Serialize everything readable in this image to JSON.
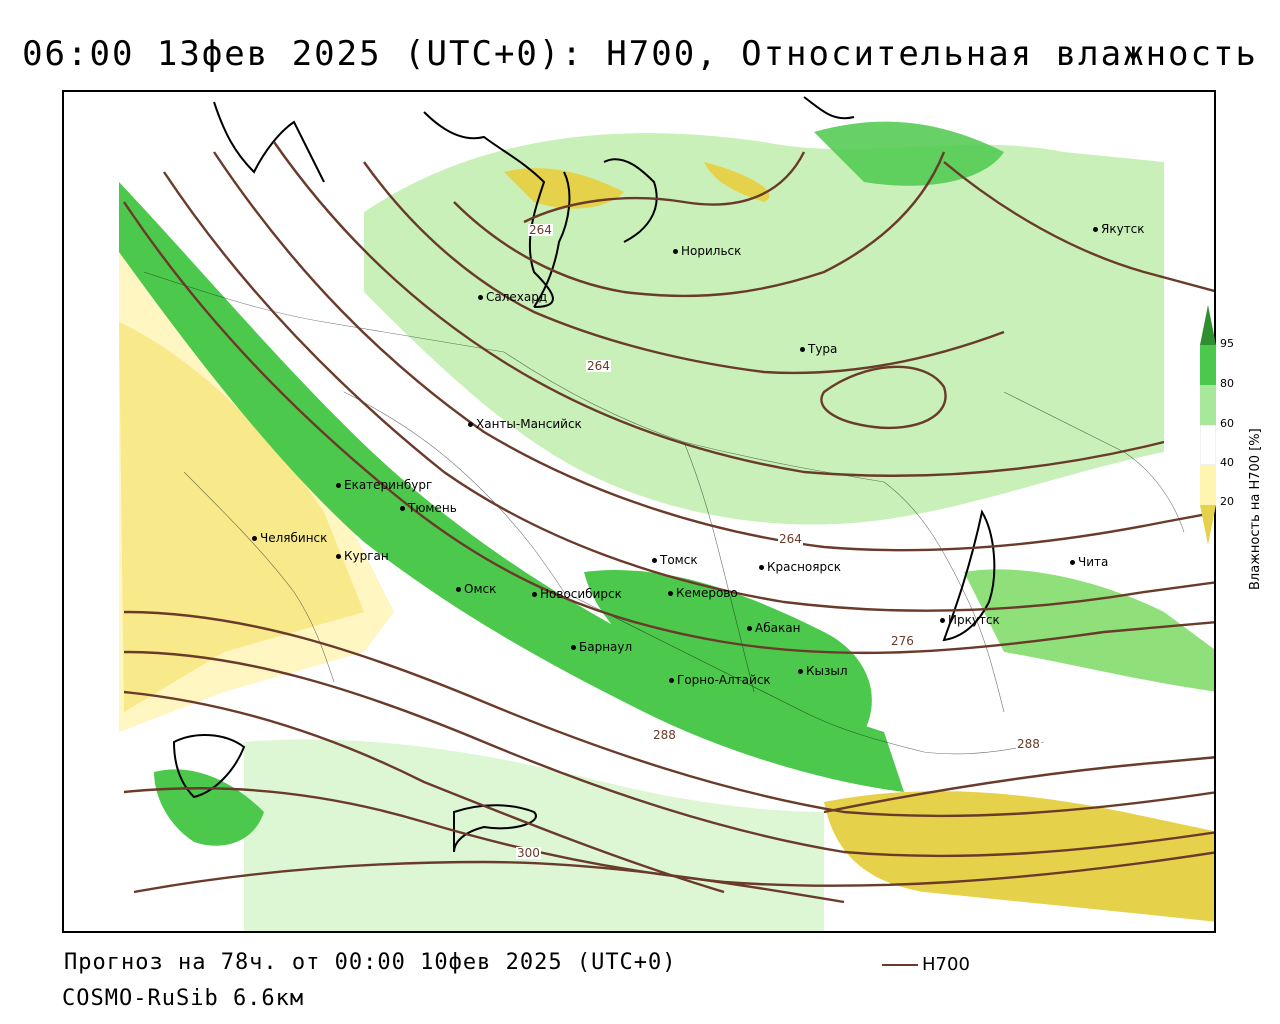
{
  "title": "06:00 13фев 2025 (UTC+0): H700, Относительная влажность",
  "footer": {
    "forecast": "Прогноз на 78ч. от 00:00 10фев 2025 (UTC+0)",
    "model": "COSMO-RuSib 6.6км",
    "legend_label": "H700"
  },
  "colorbar": {
    "label": "Влажность на H700 [%]",
    "ticks": [
      "95",
      "80",
      "60",
      "40",
      "20"
    ],
    "colors": [
      "#2f8f2f",
      "#4cc94c",
      "#a8e89a",
      "#d4f4c8",
      "#ffffff",
      "#fff4b0",
      "#f0e070",
      "#d4c020"
    ]
  },
  "cities": [
    {
      "name": "Якутск"
    },
    {
      "name": "Норильск"
    },
    {
      "name": "Салехард"
    },
    {
      "name": "Тура"
    },
    {
      "name": "Ханты-Мансийск"
    },
    {
      "name": "Екатеринбург"
    },
    {
      "name": "Тюмень"
    },
    {
      "name": "Челябинск"
    },
    {
      "name": "Курган"
    },
    {
      "name": "Омск"
    },
    {
      "name": "Новосибирск"
    },
    {
      "name": "Томск"
    },
    {
      "name": "Кемерово"
    },
    {
      "name": "Красноярск"
    },
    {
      "name": "Барнаул"
    },
    {
      "name": "Абакан"
    },
    {
      "name": "Горно-Алтайск"
    },
    {
      "name": "Кызыл"
    },
    {
      "name": "Иркутск"
    },
    {
      "name": "Чита"
    }
  ],
  "contour_labels": [
    "264",
    "264",
    "264",
    "276",
    "288",
    "288",
    "300"
  ]
}
